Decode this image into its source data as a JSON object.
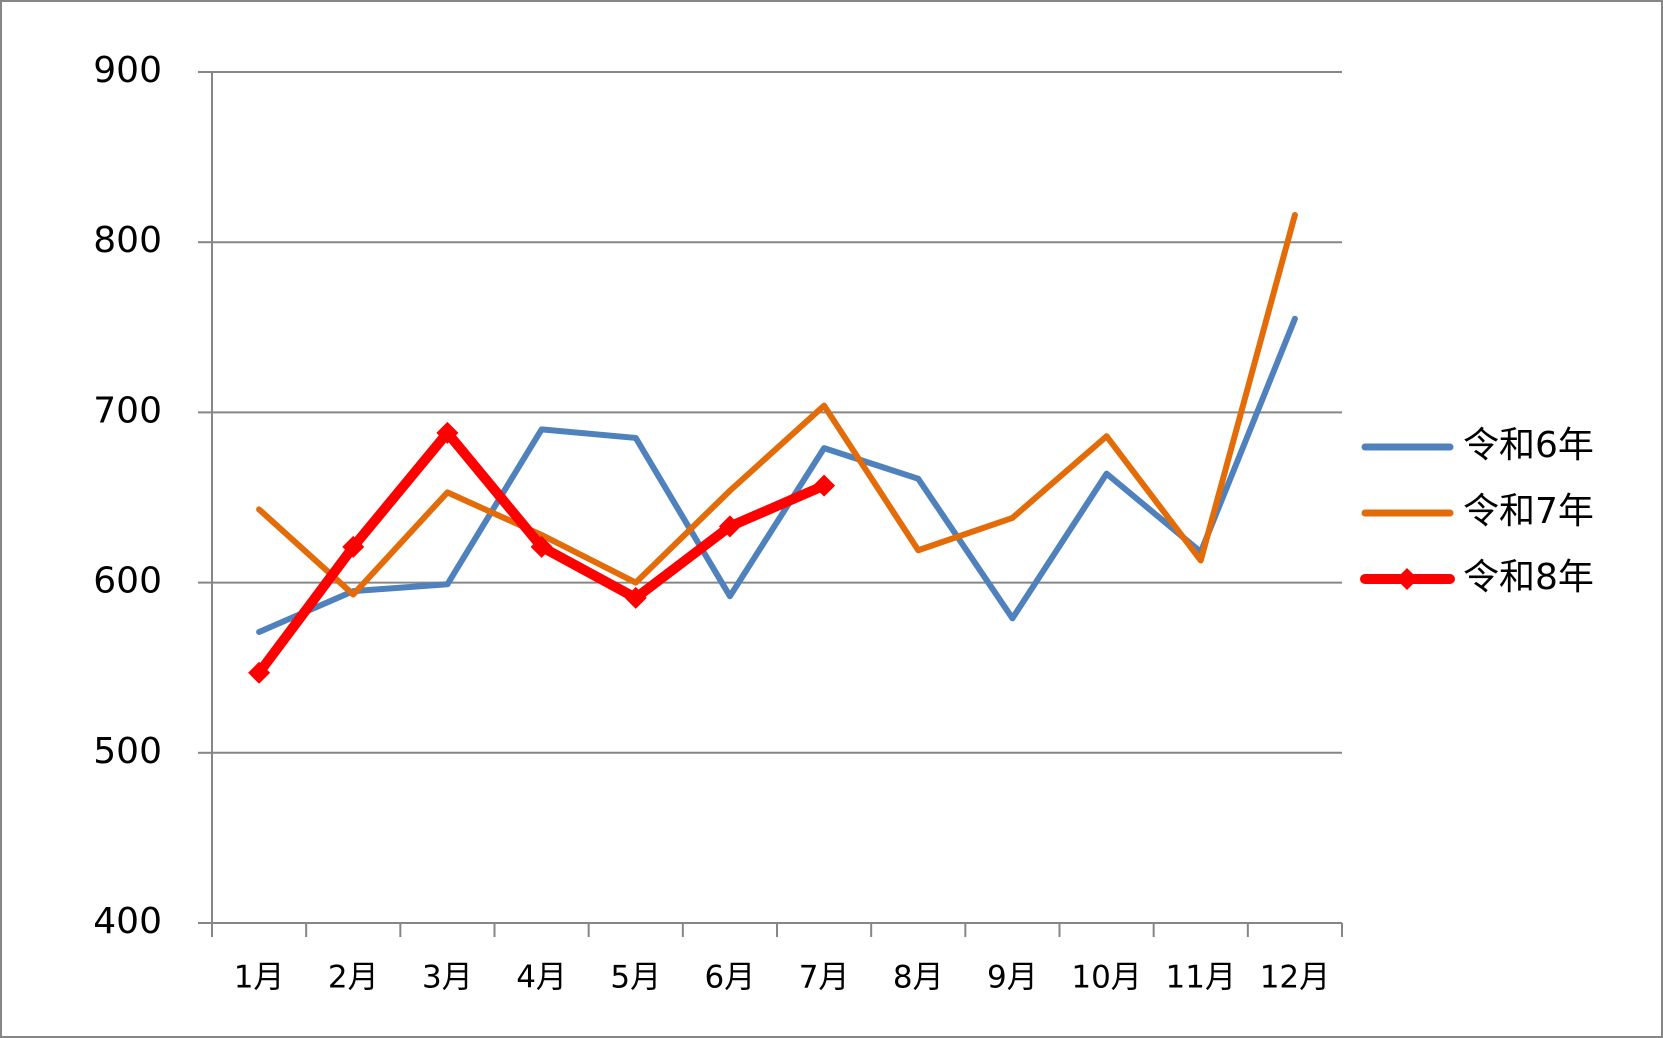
{
  "chart_data": {
    "type": "line",
    "categories": [
      "1月",
      "2月",
      "3月",
      "4月",
      "5月",
      "6月",
      "7月",
      "8月",
      "9月",
      "10月",
      "11月",
      "12月"
    ],
    "series": [
      {
        "name": "令和6年",
        "color": "#4f81bd",
        "values": [
          571,
          595,
          599,
          690,
          685,
          592,
          679,
          661,
          579,
          664,
          618,
          755
        ]
      },
      {
        "name": "令和7年",
        "color": "#e36c09",
        "values": [
          643,
          593,
          653,
          628,
          600,
          654,
          704,
          619,
          638,
          686,
          613,
          816
        ]
      },
      {
        "name": "令和8年",
        "color": "#ff0000",
        "marker": "diamond",
        "values": [
          547,
          621,
          688,
          621,
          591,
          633,
          657,
          null,
          null,
          null,
          null,
          null
        ]
      }
    ],
    "ylim": [
      400,
      900
    ],
    "yticks": [
      400,
      500,
      600,
      700,
      800,
      900
    ],
    "grid": true,
    "legend": "right"
  }
}
